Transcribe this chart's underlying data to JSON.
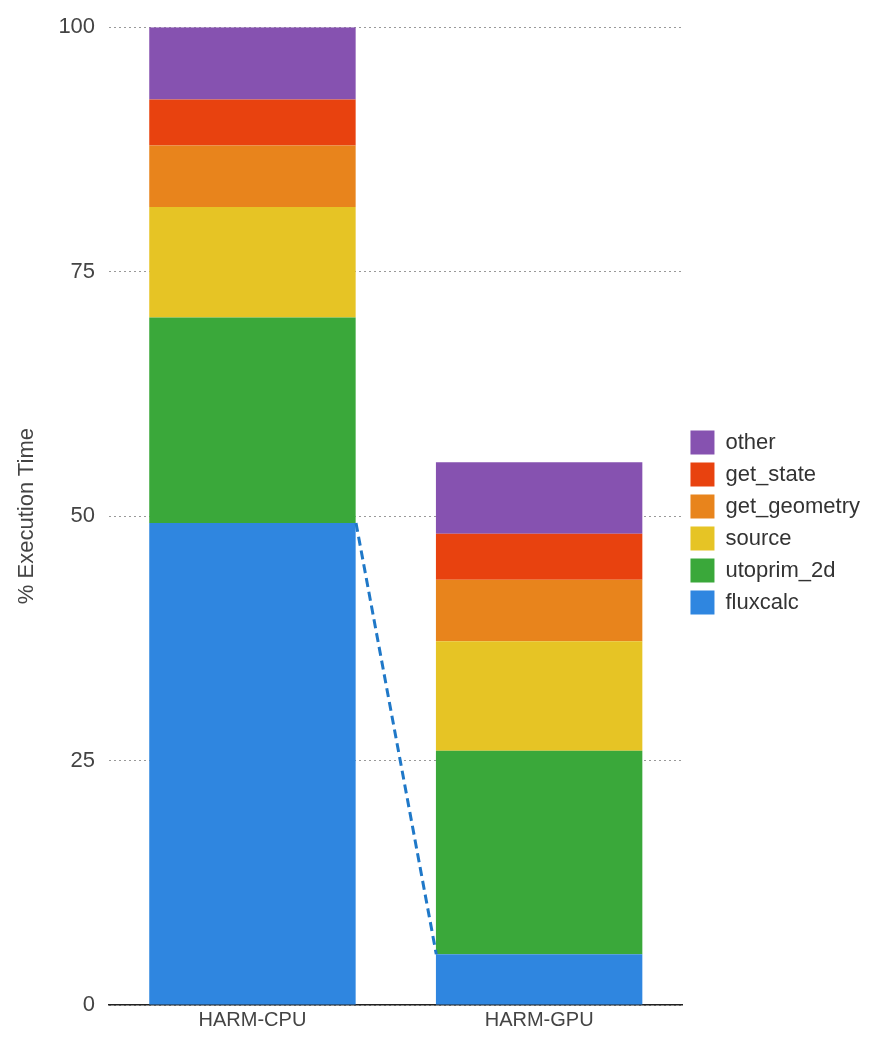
{
  "chart_data": {
    "type": "bar",
    "stacked": true,
    "ylabel": "% Execution Time",
    "categories": [
      "HARM-CPU",
      "HARM-GPU"
    ],
    "series": [
      {
        "name": "fluxcalc",
        "color": "#2f86e0",
        "values": [
          49.3,
          5.2
        ]
      },
      {
        "name": "utoprim_2d",
        "color": "#3aa83a",
        "values": [
          21.0,
          20.8
        ]
      },
      {
        "name": "source",
        "color": "#e6c425",
        "values": [
          11.3,
          11.2
        ]
      },
      {
        "name": "get_geometry",
        "color": "#e8841c",
        "values": [
          6.3,
          6.3
        ]
      },
      {
        "name": "get_state",
        "color": "#e8420f",
        "values": [
          4.7,
          4.7
        ]
      },
      {
        "name": "other",
        "color": "#8652b0",
        "values": [
          7.4,
          7.3
        ]
      }
    ],
    "ylim": [
      0,
      100
    ],
    "yticks": [
      0,
      25,
      50,
      75,
      100
    ],
    "grid": "y",
    "legend": "right"
  }
}
